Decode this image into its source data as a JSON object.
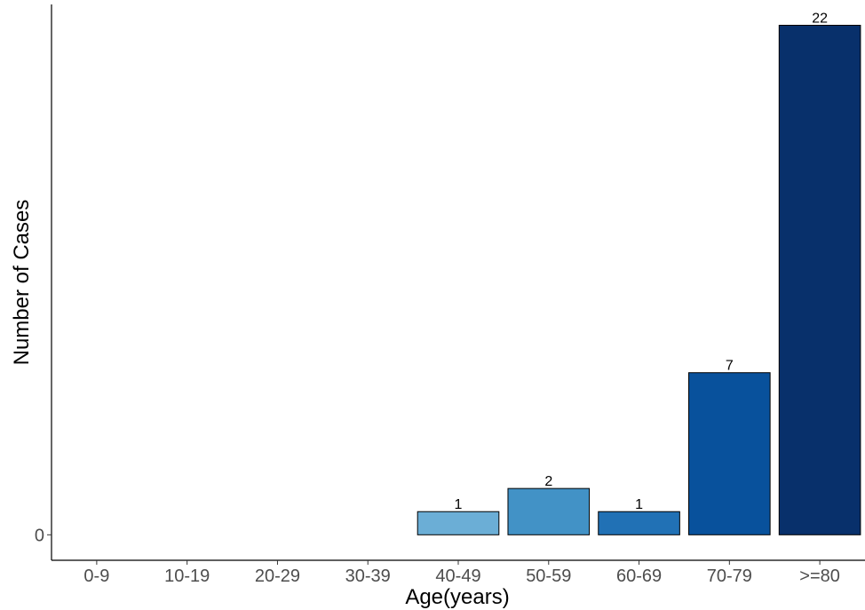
{
  "chart_data": {
    "type": "bar",
    "categories": [
      "0-9",
      "10-19",
      "20-29",
      "30-39",
      "40-49",
      "50-59",
      "60-69",
      "70-79",
      ">=80"
    ],
    "values": [
      0,
      0,
      0,
      0,
      1,
      2,
      1,
      7,
      22
    ],
    "data_labels": [
      "",
      "",
      "",
      "",
      "1",
      "2",
      "1",
      "7",
      "22"
    ],
    "bar_colors": [
      "#c6dbef",
      "#9ecae1",
      "#84bcdb",
      "#6baed6",
      "#6baed6",
      "#4292c6",
      "#2171b5",
      "#08519c",
      "#08306b"
    ],
    "xlabel": "Age(years)",
    "ylabel": "Number of Cases",
    "y_ticks": [
      0
    ],
    "ylim": [
      -1.1,
      22.9
    ],
    "grid": false,
    "legend": "none"
  }
}
